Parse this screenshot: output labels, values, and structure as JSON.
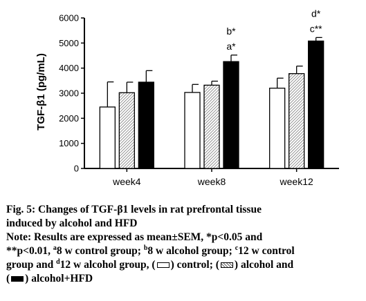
{
  "chart_data": {
    "type": "bar",
    "categories": [
      "week4",
      "week8",
      "week12"
    ],
    "series": [
      {
        "values": [
          2450,
          3030,
          3200
        ],
        "errors": [
          1000,
          320,
          400
        ],
        "fill": "white"
      },
      {
        "values": [
          3020,
          3320,
          3780
        ],
        "errors": [
          420,
          160,
          300
        ],
        "fill": "hatch"
      },
      {
        "values": [
          3440,
          4260,
          5080
        ],
        "errors": [
          460,
          260,
          140
        ],
        "fill": "black"
      }
    ],
    "ylabel": "TGF-β1 (pg/mL)",
    "ylim": [
      0,
      6000
    ],
    "yticks": [
      "0",
      "1000",
      "2000",
      "3000",
      "4000",
      "5000",
      "6000"
    ],
    "annotations": [
      {
        "category": "week8",
        "series": 2,
        "lines": [
          "b*",
          "a*"
        ]
      },
      {
        "category": "week12",
        "series": 2,
        "lines": [
          "d*",
          "c**"
        ]
      }
    ],
    "grid": false,
    "colors": {
      "bar_black": "#000000",
      "bar_white": "#ffffff",
      "hatch": "#666666"
    }
  },
  "caption": {
    "fig_title_1": "Fig. 5: Changes of TGF-β1 levels in rat prefrontal tissue",
    "fig_title_2": "induced by alcohol and HFD",
    "note_1": "Note: Results are expressed as mean±SEM, *p<0.05 and",
    "note_2a": "**p<0.01, ",
    "sup_a": "a",
    "note_2b": "8 w control group; ",
    "sup_b": "b",
    "note_2c": "8 w alcohol group; ",
    "sup_c": "c",
    "note_2d": "12 w control",
    "note_3a": "group and ",
    "sup_d": "d",
    "note_3b": "12 w alcohol group, (",
    "note_3c": ") control; (",
    "note_3d": ") alcohol and",
    "note_4a": "(",
    "note_4b": ") alcohol+HFD"
  }
}
